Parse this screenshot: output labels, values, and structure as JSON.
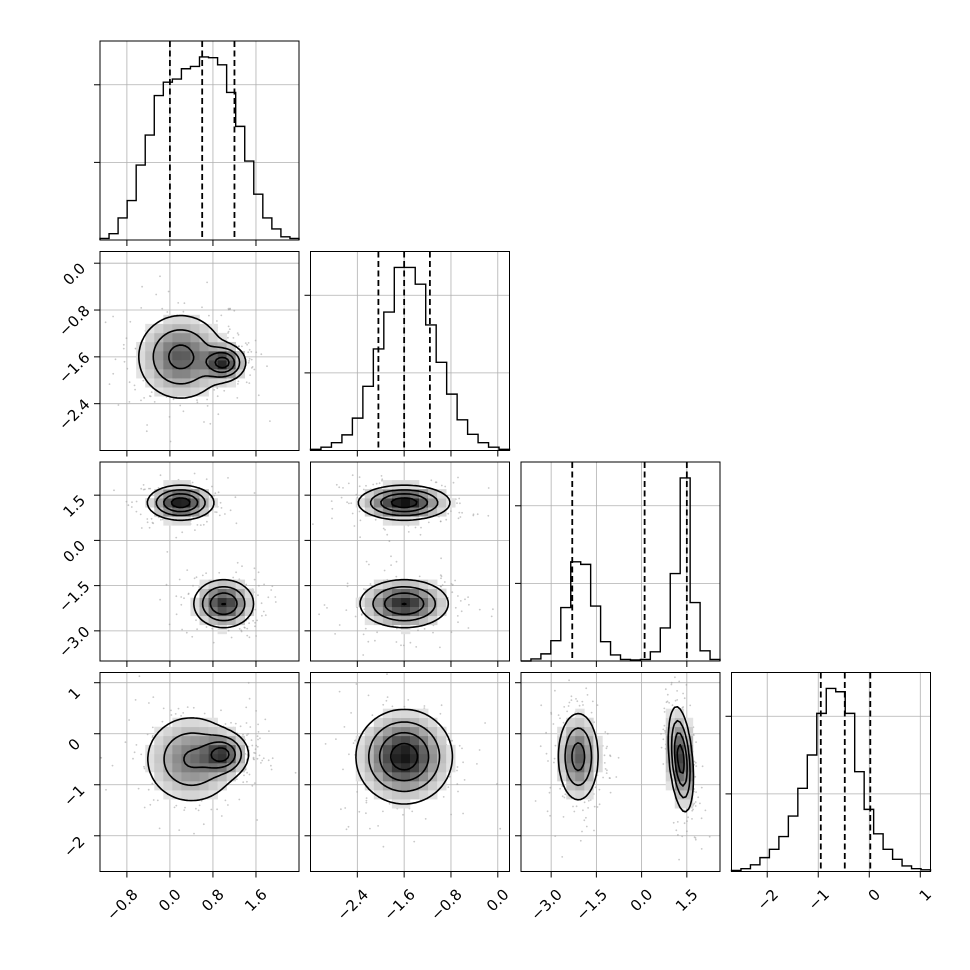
{
  "chart_data": {
    "type": "corner",
    "grid": true,
    "ink_color": "#000000",
    "scatter_color": "#9a9a9a",
    "parameters": [
      {
        "range": [
          -1.3,
          2.4
        ],
        "ticks": [
          -0.8,
          0.0,
          0.8,
          1.6
        ],
        "tick_labels": [
          "−0.8",
          "0.0",
          "0.8",
          "1.6"
        ],
        "quantiles": [
          0.0,
          0.6,
          1.2
        ],
        "hist_counts": [
          2,
          8,
          28,
          50,
          95,
          133,
          183,
          200,
          204,
          217,
          220,
          232,
          231,
          222,
          187,
          144,
          100,
          58,
          28,
          14,
          4,
          2
        ]
      },
      {
        "range": [
          -3.2,
          0.2
        ],
        "ticks": [
          -2.4,
          -1.6,
          -0.8,
          0.0
        ],
        "tick_labels": [
          "−2.4",
          "−1.6",
          "−0.8",
          "0.0"
        ],
        "quantiles": [
          -2.04,
          -1.6,
          -1.16
        ],
        "hist_counts": [
          2,
          6,
          14,
          28,
          58,
          115,
          182,
          248,
          328,
          328,
          298,
          225,
          158,
          101,
          55,
          29,
          14,
          6,
          2
        ]
      },
      {
        "range": [
          -4.0,
          2.6
        ],
        "ticks": [
          -3.0,
          -1.5,
          0.0,
          1.5
        ],
        "tick_labels": [
          "−3.0",
          "−1.5",
          "0.0",
          "1.5"
        ],
        "quantiles": [
          -2.3,
          0.1,
          1.5
        ],
        "hist_counts": [
          0,
          4,
          14,
          40,
          105,
          195,
          190,
          108,
          38,
          12,
          3,
          2,
          3,
          18,
          65,
          172,
          360,
          115,
          20,
          3
        ]
      },
      {
        "range": [
          -2.7,
          1.2
        ],
        "ticks": [
          -2,
          -1,
          0,
          1
        ],
        "tick_labels": [
          "−2",
          "−1",
          "0",
          "1"
        ],
        "quantiles": [
          -0.95,
          -0.48,
          0.02
        ],
        "hist_counts": [
          2,
          5,
          12,
          25,
          40,
          63,
          100,
          150,
          210,
          285,
          330,
          324,
          285,
          180,
          112,
          68,
          40,
          22,
          10,
          5,
          3
        ]
      }
    ],
    "joint": [
      {
        "row": 1,
        "col": 0,
        "modes": [
          {
            "mean": [
              0.2,
              -1.6
            ],
            "sd": [
              0.42,
              0.38
            ],
            "weight": 0.9
          },
          {
            "mean": [
              1.0,
              -1.7
            ],
            "sd": [
              0.2,
              0.15
            ],
            "weight": 1.2
          }
        ]
      },
      {
        "row": 2,
        "col": 0,
        "modes": [
          {
            "mean": [
              0.2,
              1.25
            ],
            "sd": [
              0.3,
              0.28
            ],
            "weight": 1.0
          },
          {
            "mean": [
              1.0,
              -2.1
            ],
            "sd": [
              0.28,
              0.4
            ],
            "weight": 0.85
          }
        ]
      },
      {
        "row": 2,
        "col": 1,
        "modes": [
          {
            "mean": [
              -1.6,
              1.25
            ],
            "sd": [
              0.38,
              0.28
            ],
            "weight": 1.0
          },
          {
            "mean": [
              -1.6,
              -2.1
            ],
            "sd": [
              0.38,
              0.4
            ],
            "weight": 0.85
          }
        ]
      },
      {
        "row": 3,
        "col": 0,
        "modes": [
          {
            "mean": [
              0.4,
              -0.5
            ],
            "sd": [
              0.45,
              0.45
            ],
            "weight": 0.9
          },
          {
            "mean": [
              1.0,
              -0.4
            ],
            "sd": [
              0.22,
              0.2
            ],
            "weight": 1.1
          }
        ]
      },
      {
        "row": 3,
        "col": 1,
        "modes": [
          {
            "mean": [
              -1.6,
              -0.45
            ],
            "sd": [
              0.4,
              0.45
            ],
            "weight": 1.0
          }
        ]
      },
      {
        "row": 3,
        "col": 2,
        "modes": [
          {
            "mean": [
              -2.1,
              -0.45
            ],
            "sd": [
              0.35,
              0.45
            ],
            "weight": 0.9
          },
          {
            "mean": [
              1.3,
              -0.5
            ],
            "sd": [
              0.2,
              0.5
            ],
            "weight": 1.3,
            "corr": -0.35
          }
        ]
      }
    ]
  }
}
